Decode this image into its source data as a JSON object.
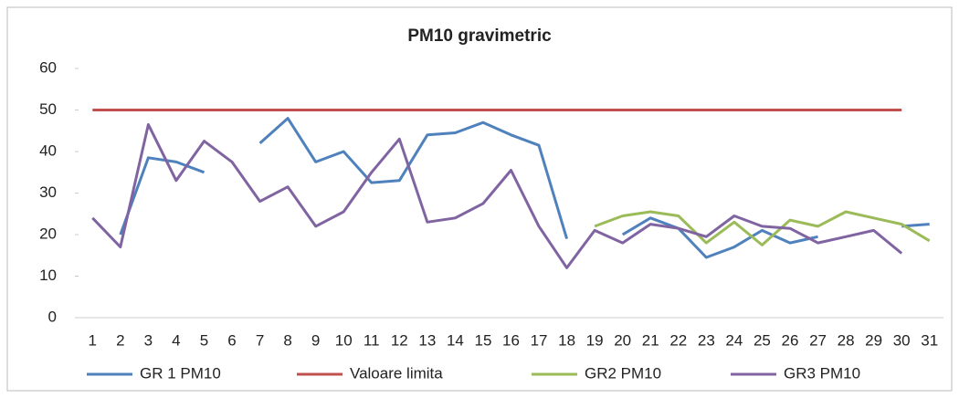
{
  "chart_data": {
    "type": "line",
    "title": "PM10 gravimetric",
    "categories": [
      "1",
      "2",
      "3",
      "4",
      "5",
      "6",
      "7",
      "8",
      "9",
      "10",
      "11",
      "12",
      "13",
      "14",
      "15",
      "16",
      "17",
      "18",
      "19",
      "20",
      "21",
      "22",
      "23",
      "24",
      "25",
      "26",
      "27",
      "28",
      "29",
      "30",
      "31"
    ],
    "series": [
      {
        "name": "GR 1 PM10",
        "color": "#4f81bd",
        "values": [
          null,
          20,
          38.5,
          37.5,
          35,
          null,
          42,
          48,
          37.5,
          40,
          32.5,
          33,
          44,
          44.5,
          47,
          44,
          41.5,
          19,
          null,
          20,
          24,
          21.5,
          14.5,
          17,
          21,
          18,
          19.5,
          null,
          null,
          22,
          22.5
        ]
      },
      {
        "name": "Valoare limita",
        "color": "#c0504d",
        "values": [
          50,
          50,
          50,
          50,
          50,
          50,
          50,
          50,
          50,
          50,
          50,
          50,
          50,
          50,
          50,
          50,
          50,
          50,
          50,
          50,
          50,
          50,
          50,
          50,
          50,
          50,
          50,
          50,
          50,
          50,
          null
        ]
      },
      {
        "name": "GR2 PM10",
        "color": "#9bbb59",
        "values": [
          null,
          null,
          null,
          null,
          null,
          null,
          null,
          null,
          null,
          null,
          null,
          null,
          null,
          null,
          null,
          null,
          null,
          null,
          22,
          24.5,
          25.5,
          24.5,
          18,
          23,
          17.5,
          23.5,
          22,
          25.5,
          24,
          22.5,
          18.5
        ]
      },
      {
        "name": "GR3 PM10",
        "color": "#8064a2",
        "values": [
          24,
          17,
          46.5,
          33,
          42.5,
          37.5,
          28,
          31.5,
          22,
          25.5,
          35,
          43,
          23,
          24,
          27.5,
          35.5,
          22,
          12,
          21,
          18,
          22.5,
          21.5,
          19.5,
          24.5,
          22,
          21.5,
          18,
          19.5,
          21,
          15.5,
          null
        ]
      }
    ],
    "ylim": [
      0,
      60
    ],
    "yticks": [
      0,
      10,
      20,
      30,
      40,
      50,
      60
    ],
    "legend": "bottom"
  }
}
